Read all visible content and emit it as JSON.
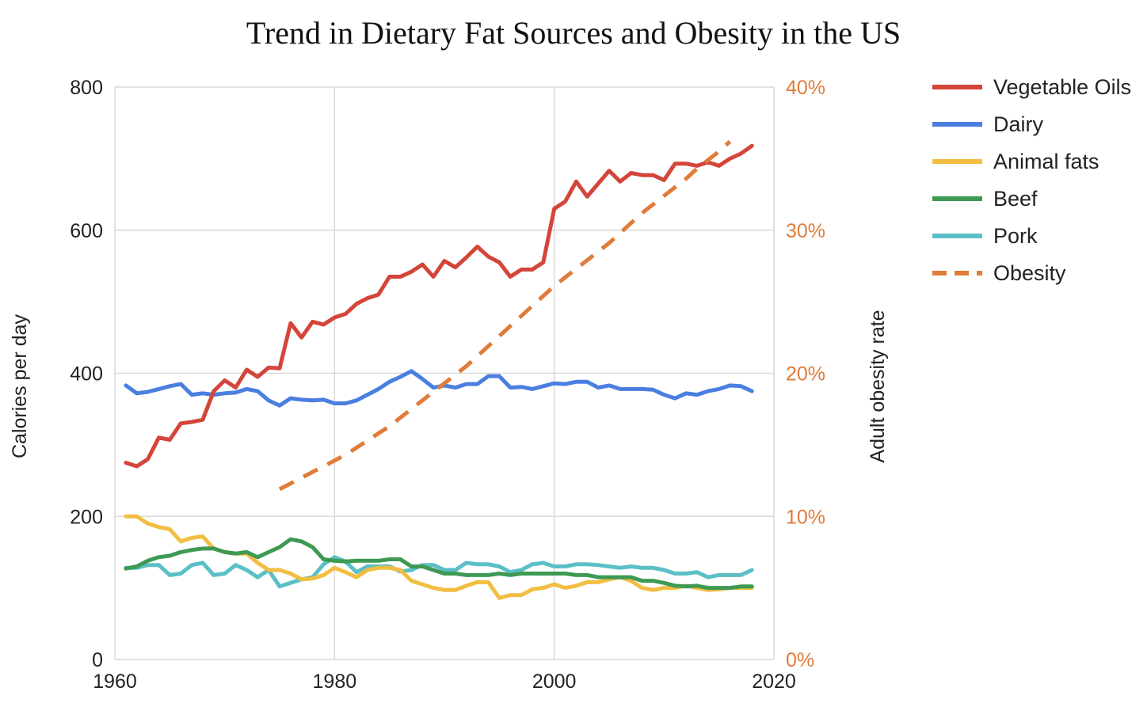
{
  "chart_data": {
    "type": "line",
    "title": "Trend in Dietary Fat Sources and Obesity in the US",
    "xlabel": "",
    "ylabel": "Calories per day",
    "y2label": "Adult obesity rate",
    "xlim": [
      1960,
      2020
    ],
    "ylim": [
      0,
      800
    ],
    "y2lim": [
      0,
      40
    ],
    "x_ticks": [
      "1960",
      "1980",
      "2000",
      "2020"
    ],
    "y_ticks": [
      "0",
      "200",
      "400",
      "600",
      "800"
    ],
    "y2_ticks": [
      "0%",
      "10%",
      "20%",
      "30%",
      "40%"
    ],
    "grid": true,
    "legend_position": "right",
    "colors": {
      "text": "#222222",
      "grid": "#d9d9d9",
      "right_axis": "#e07b39"
    },
    "series": [
      {
        "name": "Vegetable Oils",
        "axis": "left",
        "color": "#d4453a",
        "dash": false,
        "x": [
          1961,
          1962,
          1963,
          1964,
          1965,
          1966,
          1967,
          1968,
          1969,
          1970,
          1971,
          1972,
          1973,
          1974,
          1975,
          1976,
          1977,
          1978,
          1979,
          1980,
          1981,
          1982,
          1983,
          1984,
          1985,
          1986,
          1987,
          1988,
          1989,
          1990,
          1991,
          1992,
          1993,
          1994,
          1995,
          1996,
          1997,
          1998,
          1999,
          2000,
          2001,
          2002,
          2003,
          2004,
          2005,
          2006,
          2007,
          2008,
          2009,
          2010,
          2011,
          2012,
          2013,
          2014,
          2015,
          2016,
          2017,
          2018
        ],
        "y": [
          275,
          270,
          280,
          310,
          307,
          330,
          332,
          335,
          375,
          390,
          380,
          405,
          395,
          408,
          407,
          470,
          450,
          472,
          468,
          478,
          483,
          497,
          505,
          510,
          535,
          535,
          542,
          552,
          535,
          557,
          548,
          562,
          577,
          563,
          555,
          535,
          545,
          545,
          555,
          630,
          640,
          668,
          647,
          665,
          683,
          668,
          680,
          677,
          677,
          670,
          693,
          693,
          690,
          695,
          690,
          700,
          707,
          718
        ]
      },
      {
        "name": "Dairy",
        "axis": "left",
        "color": "#4a7fe0",
        "dash": false,
        "x": [
          1961,
          1962,
          1963,
          1964,
          1965,
          1966,
          1967,
          1968,
          1969,
          1970,
          1971,
          1972,
          1973,
          1974,
          1975,
          1976,
          1977,
          1978,
          1979,
          1980,
          1981,
          1982,
          1983,
          1984,
          1985,
          1986,
          1987,
          1988,
          1989,
          1990,
          1991,
          1992,
          1993,
          1994,
          1995,
          1996,
          1997,
          1998,
          1999,
          2000,
          2001,
          2002,
          2003,
          2004,
          2005,
          2006,
          2007,
          2008,
          2009,
          2010,
          2011,
          2012,
          2013,
          2014,
          2015,
          2016,
          2017,
          2018
        ],
        "y": [
          383,
          372,
          374,
          378,
          382,
          385,
          370,
          372,
          370,
          372,
          373,
          378,
          375,
          362,
          355,
          365,
          363,
          362,
          363,
          358,
          358,
          362,
          370,
          378,
          388,
          395,
          403,
          392,
          380,
          383,
          380,
          385,
          385,
          396,
          396,
          380,
          381,
          378,
          382,
          386,
          385,
          388,
          388,
          380,
          383,
          378,
          378,
          378,
          377,
          370,
          365,
          372,
          370,
          375,
          378,
          383,
          382,
          375
        ]
      },
      {
        "name": "Animal fats",
        "axis": "left",
        "color": "#f2be42",
        "dash": false,
        "x": [
          1961,
          1962,
          1963,
          1964,
          1965,
          1966,
          1967,
          1968,
          1969,
          1970,
          1971,
          1972,
          1973,
          1974,
          1975,
          1976,
          1977,
          1978,
          1979,
          1980,
          1981,
          1982,
          1983,
          1984,
          1985,
          1986,
          1987,
          1988,
          1989,
          1990,
          1991,
          1992,
          1993,
          1994,
          1995,
          1996,
          1997,
          1998,
          1999,
          2000,
          2001,
          2002,
          2003,
          2004,
          2005,
          2006,
          2007,
          2008,
          2009,
          2010,
          2011,
          2012,
          2013,
          2014,
          2015,
          2016,
          2017,
          2018
        ],
        "y": [
          200,
          200,
          190,
          185,
          182,
          165,
          170,
          172,
          155,
          150,
          148,
          148,
          135,
          125,
          125,
          120,
          112,
          113,
          118,
          128,
          122,
          115,
          125,
          128,
          128,
          125,
          110,
          105,
          100,
          97,
          97,
          103,
          108,
          108,
          86,
          90,
          90,
          98,
          100,
          105,
          100,
          103,
          108,
          108,
          112,
          115,
          110,
          100,
          97,
          100,
          100,
          103,
          100,
          97,
          98,
          100,
          100,
          100
        ]
      },
      {
        "name": "Beef",
        "axis": "left",
        "color": "#3e9a53",
        "dash": false,
        "x": [
          1961,
          1962,
          1963,
          1964,
          1965,
          1966,
          1967,
          1968,
          1969,
          1970,
          1971,
          1972,
          1973,
          1974,
          1975,
          1976,
          1977,
          1978,
          1979,
          1980,
          1981,
          1982,
          1983,
          1984,
          1985,
          1986,
          1987,
          1988,
          1989,
          1990,
          1991,
          1992,
          1993,
          1994,
          1995,
          1996,
          1997,
          1998,
          1999,
          2000,
          2001,
          2002,
          2003,
          2004,
          2005,
          2006,
          2007,
          2008,
          2009,
          2010,
          2011,
          2012,
          2013,
          2014,
          2015,
          2016,
          2017,
          2018
        ],
        "y": [
          127,
          130,
          138,
          143,
          145,
          150,
          153,
          155,
          155,
          150,
          148,
          150,
          143,
          150,
          157,
          168,
          165,
          157,
          140,
          138,
          137,
          138,
          138,
          138,
          140,
          140,
          130,
          130,
          125,
          120,
          120,
          118,
          118,
          118,
          120,
          118,
          120,
          120,
          120,
          120,
          120,
          118,
          118,
          115,
          115,
          115,
          115,
          110,
          110,
          107,
          103,
          102,
          103,
          100,
          100,
          100,
          102,
          102
        ]
      },
      {
        "name": "Pork",
        "axis": "left",
        "color": "#5bbfc7",
        "dash": false,
        "x": [
          1961,
          1962,
          1963,
          1964,
          1965,
          1966,
          1967,
          1968,
          1969,
          1970,
          1971,
          1972,
          1973,
          1974,
          1975,
          1976,
          1977,
          1978,
          1979,
          1980,
          1981,
          1982,
          1983,
          1984,
          1985,
          1986,
          1987,
          1988,
          1989,
          1990,
          1991,
          1992,
          1993,
          1994,
          1995,
          1996,
          1997,
          1998,
          1999,
          2000,
          2001,
          2002,
          2003,
          2004,
          2005,
          2006,
          2007,
          2008,
          2009,
          2010,
          2011,
          2012,
          2013,
          2014,
          2015,
          2016,
          2017,
          2018
        ],
        "y": [
          128,
          128,
          132,
          132,
          118,
          120,
          132,
          135,
          118,
          120,
          132,
          125,
          115,
          125,
          102,
          107,
          112,
          115,
          133,
          143,
          137,
          122,
          130,
          130,
          130,
          123,
          125,
          132,
          132,
          125,
          125,
          135,
          133,
          133,
          130,
          122,
          125,
          133,
          135,
          130,
          130,
          133,
          133,
          132,
          130,
          128,
          130,
          128,
          128,
          125,
          120,
          120,
          122,
          115,
          118,
          118,
          118,
          125
        ]
      },
      {
        "name": "Obesity",
        "axis": "right",
        "color": "#e07b39",
        "dash": true,
        "x": [
          1975,
          1976,
          1977,
          1978,
          1979,
          1980,
          1981,
          1982,
          1983,
          1984,
          1985,
          1986,
          1987,
          1988,
          1989,
          1990,
          1991,
          1992,
          1993,
          1994,
          1995,
          1996,
          1997,
          1998,
          1999,
          2000,
          2001,
          2002,
          2003,
          2004,
          2005,
          2006,
          2007,
          2008,
          2009,
          2010,
          2011,
          2012,
          2013,
          2014,
          2015,
          2016
        ],
        "y": [
          11.9,
          12.3,
          12.7,
          13.1,
          13.5,
          13.9,
          14.3,
          14.8,
          15.3,
          15.8,
          16.3,
          16.9,
          17.5,
          18.1,
          18.7,
          19.3,
          19.9,
          20.5,
          21.2,
          21.9,
          22.6,
          23.3,
          24.0,
          24.7,
          25.4,
          26.1,
          26.7,
          27.3,
          27.9,
          28.5,
          29.1,
          29.8,
          30.5,
          31.2,
          31.8,
          32.4,
          33.0,
          33.6,
          34.3,
          34.9,
          35.5,
          36.2
        ]
      }
    ]
  }
}
